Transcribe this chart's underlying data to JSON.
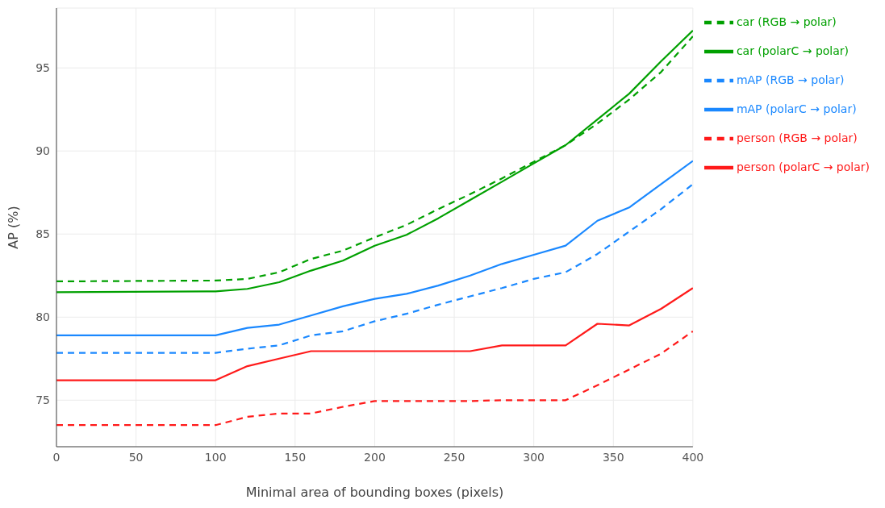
{
  "chart_data": {
    "type": "line",
    "xlabel": "Minimal area of bounding boxes (pixels)",
    "ylabel": "AP (%)",
    "x": [
      0,
      100,
      120,
      140,
      160,
      180,
      200,
      220,
      240,
      260,
      280,
      300,
      320,
      340,
      360,
      380,
      400
    ],
    "xlim": [
      0,
      400
    ],
    "xticks": [
      0,
      50,
      100,
      150,
      200,
      250,
      300,
      350,
      400
    ],
    "ylim": [
      72.2,
      98.6
    ],
    "yticks": [
      75,
      80,
      85,
      90,
      95
    ],
    "grid": true,
    "legend": "top right",
    "series": [
      {
        "name": "car (RGB → polar)",
        "color": "#00a000",
        "line_style": "dashed",
        "values": [
          82.15,
          82.2,
          82.3,
          82.7,
          83.5,
          84.0,
          84.8,
          85.55,
          86.5,
          87.4,
          88.35,
          89.35,
          90.35,
          91.65,
          93.1,
          94.75,
          96.9
        ]
      },
      {
        "name": "person (RGB → polar)",
        "color": "#ff1a1a",
        "line_style": "dashed",
        "values": [
          73.5,
          73.5,
          74.0,
          74.2,
          74.2,
          74.6,
          74.95,
          74.95,
          74.95,
          74.95,
          75.0,
          75.0,
          75.0,
          75.9,
          76.85,
          77.8,
          79.15
        ]
      },
      {
        "name": "mAP (RGB → polar)",
        "color": "#1a88ff",
        "line_style": "dashed",
        "values": [
          77.85,
          77.85,
          78.1,
          78.3,
          78.9,
          79.15,
          79.75,
          80.2,
          80.75,
          81.25,
          81.75,
          82.3,
          82.7,
          83.8,
          85.15,
          86.5,
          88.0
        ]
      },
      {
        "name": "car (polarC → polar)",
        "color": "#00a000",
        "line_style": "solid",
        "values": [
          81.5,
          81.55,
          81.7,
          82.1,
          82.8,
          83.4,
          84.3,
          84.95,
          85.95,
          87.05,
          88.15,
          89.25,
          90.35,
          91.9,
          93.45,
          95.4,
          97.25
        ]
      },
      {
        "name": "person (polarC → polar)",
        "color": "#ff1a1a",
        "line_style": "solid",
        "values": [
          76.2,
          76.2,
          77.05,
          77.5,
          77.95,
          77.95,
          77.95,
          77.95,
          77.95,
          77.95,
          78.3,
          78.3,
          78.3,
          79.6,
          79.5,
          80.5,
          81.75
        ]
      },
      {
        "name": "mAP (polarC → polar)",
        "color": "#1a88ff",
        "line_style": "solid",
        "values": [
          78.9,
          78.9,
          79.35,
          79.55,
          80.1,
          80.65,
          81.1,
          81.4,
          81.9,
          82.5,
          83.2,
          83.75,
          84.3,
          85.8,
          86.6,
          88.0,
          89.4
        ]
      }
    ]
  }
}
